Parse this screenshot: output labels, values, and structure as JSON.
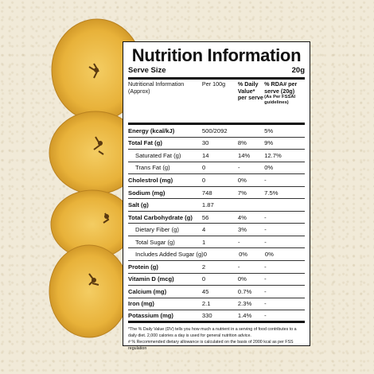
{
  "label": {
    "title": "Nutrition Information",
    "serve_size_label": "Serve Size",
    "serve_size_value": "20g",
    "header": {
      "col1": "Nutritional Information (Approx)",
      "col2": "Per 100g",
      "col3": "% Daily Value* per serve",
      "col4": "% RDA# per serve (20g)",
      "col4_sub": "(As Per FSSAI guidelines)"
    },
    "rows": [
      {
        "name": "Energy (kcal/kJ)",
        "per100": "500/2092",
        "dv": "",
        "rda": "5%"
      },
      {
        "name": "Total Fat (g)",
        "per100": "30",
        "dv": "8%",
        "rda": "9%"
      },
      {
        "name": "Saturated Fat (g)",
        "per100": "14",
        "dv": "14%",
        "rda": "12.7%"
      },
      {
        "name": "Trans Fat (g)",
        "per100": "0",
        "dv": "-",
        "rda": "0%"
      },
      {
        "name": "Cholestrol (mg)",
        "per100": "0",
        "dv": "0%",
        "rda": "-"
      },
      {
        "name": "Sodium (mg)",
        "per100": "748",
        "dv": "7%",
        "rda": "7.5%"
      },
      {
        "name": "Salt (g)",
        "per100": "1.87",
        "dv": "",
        "rda": ""
      },
      {
        "name": "Total Carbohydrate (g)",
        "per100": "56",
        "dv": "4%",
        "rda": "-"
      },
      {
        "name": "Dietary Fiber (g)",
        "per100": "4",
        "dv": "3%",
        "rda": "-"
      },
      {
        "name": "Total Sugar (g)",
        "per100": "1",
        "dv": "-",
        "rda": "-"
      },
      {
        "name": "Includes Added Sugar (g)",
        "per100": "0",
        "dv": "0%",
        "rda": "0%"
      },
      {
        "name": "Protein (g)",
        "per100": "2",
        "dv": "-",
        "rda": "-"
      },
      {
        "name": "Vitamin D (mcg)",
        "per100": "0",
        "dv": "0%",
        "rda": "-"
      },
      {
        "name": "Calcium (mg)",
        "per100": "45",
        "dv": "0.7%",
        "rda": "-"
      },
      {
        "name": "Iron (mg)",
        "per100": "2.1",
        "dv": "2.3%",
        "rda": "-"
      },
      {
        "name": "Potassium (mg)",
        "per100": "330",
        "dv": "1.4%",
        "rda": "-"
      }
    ],
    "footnote1": "*The % Daily Value (DV) tells you how much a nutrient in a serving of food contributes to a daily diet. 2,000 calories a day is used for general nutrition advice.",
    "footnote2": "# % Recommended dietary allowance is calculated on the basis of 2000 kcal as per FSS regulation"
  },
  "colors": {
    "background": "#f1ead8",
    "chip": "#e9b43c",
    "chip_edge": "#c9902a"
  },
  "decor": {
    "image": "banana-chips-image"
  }
}
